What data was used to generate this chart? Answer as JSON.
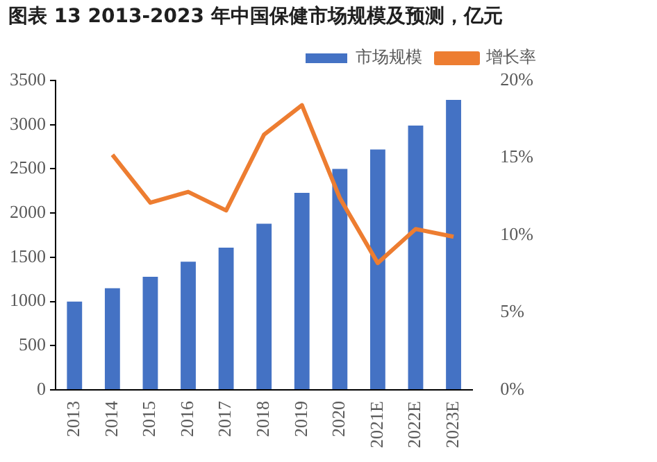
{
  "chart_data": {
    "type": "bar",
    "title": "图表 13 2013-2023 年中国保健市场规模及预测，亿元",
    "categories": [
      "2013",
      "2014",
      "2015",
      "2016",
      "2017",
      "2018",
      "2019",
      "2020",
      "2021E",
      "2022E",
      "2023E"
    ],
    "series": [
      {
        "name": "市场规模",
        "color": "#4472c4",
        "values": [
          1000,
          1150,
          1280,
          1450,
          1610,
          1880,
          2230,
          2500,
          2720,
          2990,
          3280
        ]
      },
      {
        "name": "增长率",
        "type": "line",
        "axis": "y2",
        "color": "#ed7d31",
        "values": [
          null,
          15.2,
          12.1,
          12.8,
          11.6,
          16.5,
          18.4,
          12.4,
          8.2,
          10.4,
          9.9
        ]
      }
    ],
    "ylim": [
      0,
      3500
    ],
    "yticks": [
      0,
      500,
      1000,
      1500,
      2000,
      2500,
      3000,
      3500
    ],
    "y2lim": [
      0,
      20
    ],
    "y2ticks": [
      {
        "value": 0,
        "label": "0%"
      },
      {
        "value": 5,
        "label": "5%"
      },
      {
        "value": 10,
        "label": "10%"
      },
      {
        "value": 15,
        "label": "15%"
      },
      {
        "value": 20,
        "label": "20%"
      }
    ],
    "grid": false,
    "legend": "top",
    "marker": "none"
  }
}
